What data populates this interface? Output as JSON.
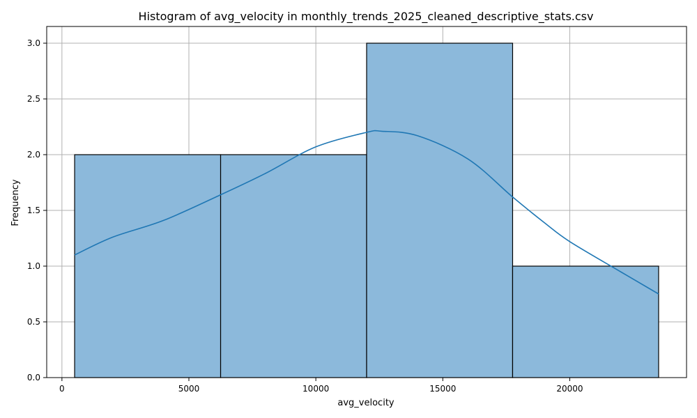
{
  "chart_data": {
    "type": "bar",
    "subtype": "histogram",
    "title": "Histogram of avg_velocity in monthly_trends_2025_cleaned_descriptive_stats.csv",
    "xlabel": "avg_velocity",
    "ylabel": "Frequency",
    "xlim": [
      -600,
      24600
    ],
    "ylim": [
      0,
      3.15
    ],
    "x_ticks": [
      0,
      5000,
      10000,
      15000,
      20000
    ],
    "x_tick_labels": [
      "0",
      "5000",
      "10000",
      "15000",
      "20000"
    ],
    "y_ticks": [
      0,
      0.5,
      1.0,
      1.5,
      2.0,
      2.5,
      3.0
    ],
    "y_tick_labels": [
      "0.0",
      "0.5",
      "1.0",
      "1.5",
      "2.0",
      "2.5",
      "3.0"
    ],
    "bins": [
      {
        "x_start": 500,
        "x_end": 6250,
        "count": 2
      },
      {
        "x_start": 6250,
        "x_end": 12000,
        "count": 2
      },
      {
        "x_start": 12000,
        "x_end": 17750,
        "count": 3
      },
      {
        "x_start": 17750,
        "x_end": 23500,
        "count": 1
      }
    ],
    "kde": {
      "x": [
        500,
        2000,
        4000,
        6250,
        8000,
        10000,
        12000,
        12600,
        14000,
        16000,
        17750,
        19000,
        20000,
        22000,
        23500
      ],
      "y": [
        1.1,
        1.26,
        1.41,
        1.64,
        1.83,
        2.07,
        2.2,
        2.21,
        2.17,
        1.96,
        1.62,
        1.39,
        1.22,
        0.95,
        0.75
      ]
    },
    "grid": true,
    "colors": {
      "bar_fill": "#8cb9db",
      "bar_edge": "#000000",
      "kde_line": "#1f77b4",
      "grid": "#b0b0b0"
    }
  }
}
